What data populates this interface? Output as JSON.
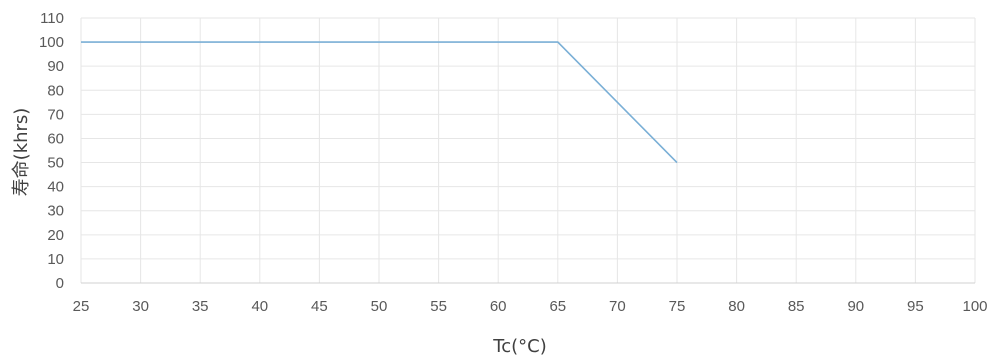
{
  "chart_data": {
    "type": "line",
    "title": "",
    "xlabel": "Tc(°C)",
    "ylabel": "寿命(khrs)",
    "xlim": [
      25,
      100
    ],
    "ylim": [
      0,
      110
    ],
    "x_ticks": [
      25,
      30,
      35,
      40,
      45,
      50,
      55,
      60,
      65,
      70,
      75,
      80,
      85,
      90,
      95,
      100
    ],
    "y_ticks": [
      0,
      10,
      20,
      30,
      40,
      50,
      60,
      70,
      80,
      90,
      100,
      110
    ],
    "grid": true,
    "legend": "none",
    "series": [
      {
        "color": "#7aafd6",
        "points": [
          {
            "x": 25,
            "y": 100
          },
          {
            "x": 65,
            "y": 100
          },
          {
            "x": 75,
            "y": 50
          }
        ]
      }
    ]
  }
}
